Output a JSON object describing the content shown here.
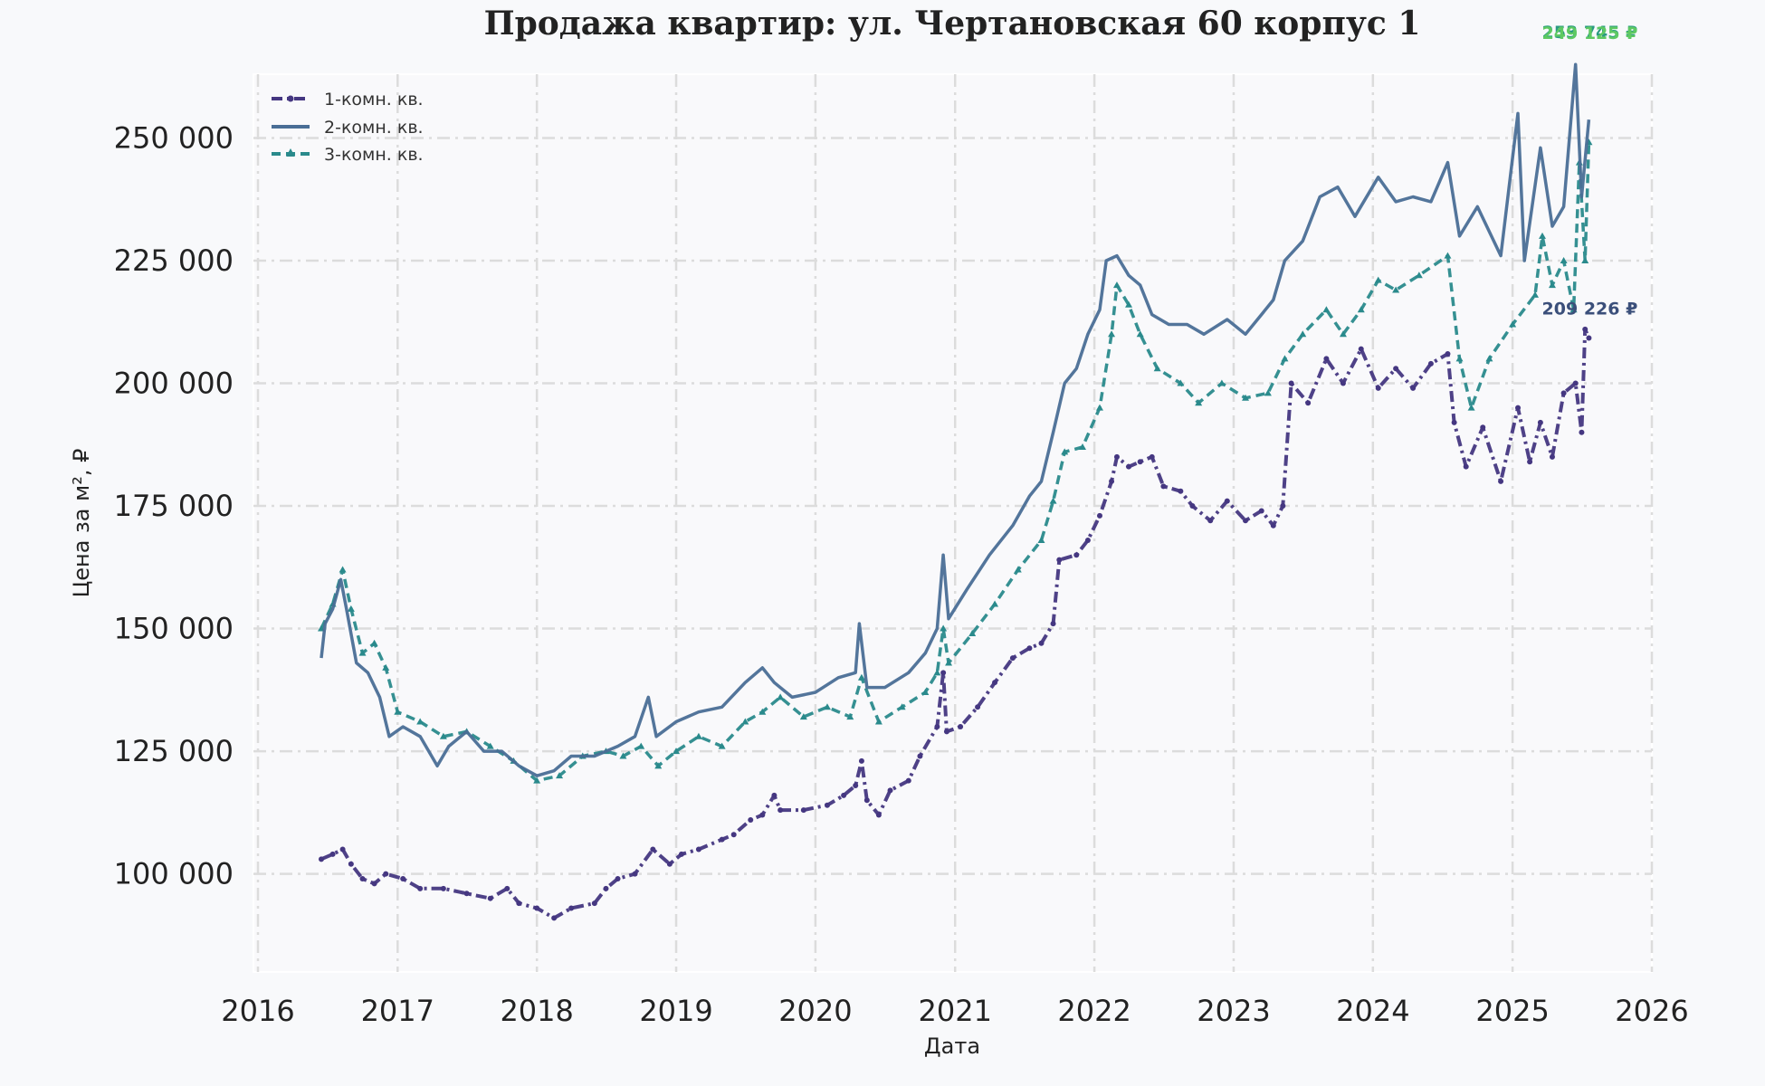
{
  "chart_data": {
    "type": "line",
    "title": "Продажа квартир: ул. Чертановская 60 корпус 1",
    "xlabel": "Дата",
    "ylabel": "Цена за м², ₽",
    "xlim": [
      "2016-01-01",
      "2026-01-01"
    ],
    "ylim": [
      80000,
      263000
    ],
    "x_ticks": [
      "2016",
      "2017",
      "2018",
      "2019",
      "2020",
      "2021",
      "2022",
      "2023",
      "2024",
      "2025",
      "2026"
    ],
    "y_ticks": [
      "100 000",
      "125 000",
      "150 000",
      "175 000",
      "200 000",
      "225 000",
      "250 000"
    ],
    "y_tick_values": [
      100000,
      125000,
      150000,
      175000,
      200000,
      225000,
      250000
    ],
    "grid": true,
    "legend_position": "top-left",
    "series": [
      {
        "name": "1-комн. кв.",
        "color": "#453781",
        "style": "dashdot-dots",
        "points": [
          [
            "2016-06-15",
            103000
          ],
          [
            "2016-07-15",
            104000
          ],
          [
            "2016-08-10",
            105000
          ],
          [
            "2016-09-01",
            102000
          ],
          [
            "2016-10-01",
            99000
          ],
          [
            "2016-11-01",
            98000
          ],
          [
            "2016-12-01",
            100000
          ],
          [
            "2017-01-15",
            99000
          ],
          [
            "2017-03-01",
            97000
          ],
          [
            "2017-05-01",
            97000
          ],
          [
            "2017-07-01",
            96000
          ],
          [
            "2017-09-01",
            95000
          ],
          [
            "2017-10-15",
            97000
          ],
          [
            "2017-11-15",
            94000
          ],
          [
            "2018-01-01",
            93000
          ],
          [
            "2018-02-15",
            91000
          ],
          [
            "2018-04-01",
            93000
          ],
          [
            "2018-06-01",
            94000
          ],
          [
            "2018-07-01",
            97000
          ],
          [
            "2018-08-01",
            99000
          ],
          [
            "2018-09-15",
            100000
          ],
          [
            "2018-11-01",
            105000
          ],
          [
            "2018-12-15",
            102000
          ],
          [
            "2019-01-15",
            104000
          ],
          [
            "2019-03-01",
            105000
          ],
          [
            "2019-05-01",
            107000
          ],
          [
            "2019-06-01",
            108000
          ],
          [
            "2019-07-15",
            111000
          ],
          [
            "2019-08-15",
            112000
          ],
          [
            "2019-09-15",
            116000
          ],
          [
            "2019-10-01",
            113000
          ],
          [
            "2019-12-01",
            113000
          ],
          [
            "2020-02-01",
            114000
          ],
          [
            "2020-03-15",
            116000
          ],
          [
            "2020-04-15",
            118000
          ],
          [
            "2020-05-01",
            123000
          ],
          [
            "2020-05-15",
            115000
          ],
          [
            "2020-06-15",
            112000
          ],
          [
            "2020-07-15",
            117000
          ],
          [
            "2020-09-01",
            119000
          ],
          [
            "2020-10-01",
            124000
          ],
          [
            "2020-11-15",
            130000
          ],
          [
            "2020-12-01",
            141000
          ],
          [
            "2020-12-10",
            129000
          ],
          [
            "2021-01-15",
            130000
          ],
          [
            "2021-03-01",
            134000
          ],
          [
            "2021-04-15",
            139000
          ],
          [
            "2021-06-01",
            144000
          ],
          [
            "2021-07-15",
            146000
          ],
          [
            "2021-08-15",
            147000
          ],
          [
            "2021-09-15",
            151000
          ],
          [
            "2021-10-01",
            164000
          ],
          [
            "2021-11-15",
            165000
          ],
          [
            "2021-12-15",
            168000
          ],
          [
            "2022-01-15",
            173000
          ],
          [
            "2022-02-15",
            180000
          ],
          [
            "2022-03-01",
            185000
          ],
          [
            "2022-04-01",
            183000
          ],
          [
            "2022-05-01",
            184000
          ],
          [
            "2022-06-01",
            185000
          ],
          [
            "2022-07-01",
            179000
          ],
          [
            "2022-08-15",
            178000
          ],
          [
            "2022-09-15",
            175000
          ],
          [
            "2022-11-01",
            172000
          ],
          [
            "2022-12-15",
            176000
          ],
          [
            "2023-02-01",
            172000
          ],
          [
            "2023-03-15",
            174000
          ],
          [
            "2023-04-15",
            171000
          ],
          [
            "2023-05-10",
            175000
          ],
          [
            "2023-06-01",
            200000
          ],
          [
            "2023-07-15",
            196000
          ],
          [
            "2023-09-01",
            205000
          ],
          [
            "2023-10-15",
            200000
          ],
          [
            "2023-12-01",
            207000
          ],
          [
            "2024-01-15",
            199000
          ],
          [
            "2024-03-01",
            203000
          ],
          [
            "2024-04-15",
            199000
          ],
          [
            "2024-06-01",
            204000
          ],
          [
            "2024-07-15",
            206000
          ],
          [
            "2024-08-01",
            192000
          ],
          [
            "2024-09-01",
            183000
          ],
          [
            "2024-10-15",
            191000
          ],
          [
            "2024-12-01",
            180000
          ],
          [
            "2025-01-15",
            195000
          ],
          [
            "2025-02-15",
            184000
          ],
          [
            "2025-03-15",
            192000
          ],
          [
            "2025-04-15",
            185000
          ],
          [
            "2025-05-15",
            198000
          ],
          [
            "2025-06-15",
            200000
          ],
          [
            "2025-07-01",
            190000
          ],
          [
            "2025-07-10",
            211000
          ],
          [
            "2025-07-20",
            209226
          ]
        ],
        "end_label": "209 226 ₽"
      },
      {
        "name": "2-комн. кв.",
        "color": "#4a6e96",
        "style": "solid",
        "points": [
          [
            "2016-06-15",
            144000
          ],
          [
            "2016-06-25",
            151000
          ],
          [
            "2016-07-15",
            154000
          ],
          [
            "2016-08-05",
            160000
          ],
          [
            "2016-08-20",
            154000
          ],
          [
            "2016-09-15",
            143000
          ],
          [
            "2016-10-15",
            141000
          ],
          [
            "2016-11-15",
            136000
          ],
          [
            "2016-12-10",
            128000
          ],
          [
            "2017-01-15",
            130000
          ],
          [
            "2017-03-01",
            128000
          ],
          [
            "2017-04-15",
            122000
          ],
          [
            "2017-05-15",
            126000
          ],
          [
            "2017-07-01",
            129000
          ],
          [
            "2017-08-15",
            125000
          ],
          [
            "2017-10-01",
            125000
          ],
          [
            "2017-11-15",
            122000
          ],
          [
            "2018-01-01",
            120000
          ],
          [
            "2018-02-15",
            121000
          ],
          [
            "2018-04-01",
            124000
          ],
          [
            "2018-06-01",
            124000
          ],
          [
            "2018-08-01",
            126000
          ],
          [
            "2018-09-15",
            128000
          ],
          [
            "2018-10-20",
            136000
          ],
          [
            "2018-11-10",
            128000
          ],
          [
            "2019-01-01",
            131000
          ],
          [
            "2019-03-01",
            133000
          ],
          [
            "2019-05-01",
            134000
          ],
          [
            "2019-07-01",
            139000
          ],
          [
            "2019-08-15",
            142000
          ],
          [
            "2019-09-15",
            139000
          ],
          [
            "2019-11-01",
            136000
          ],
          [
            "2020-01-01",
            137000
          ],
          [
            "2020-03-01",
            140000
          ],
          [
            "2020-04-15",
            141000
          ],
          [
            "2020-04-25",
            151000
          ],
          [
            "2020-05-15",
            138000
          ],
          [
            "2020-07-01",
            138000
          ],
          [
            "2020-09-01",
            141000
          ],
          [
            "2020-10-15",
            145000
          ],
          [
            "2020-11-15",
            150000
          ],
          [
            "2020-12-01",
            165000
          ],
          [
            "2020-12-15",
            152000
          ],
          [
            "2021-02-01",
            158000
          ],
          [
            "2021-04-01",
            165000
          ],
          [
            "2021-06-01",
            171000
          ],
          [
            "2021-07-15",
            177000
          ],
          [
            "2021-08-15",
            180000
          ],
          [
            "2021-09-15",
            190000
          ],
          [
            "2021-10-15",
            200000
          ],
          [
            "2021-11-15",
            203000
          ],
          [
            "2021-12-15",
            210000
          ],
          [
            "2022-01-15",
            215000
          ],
          [
            "2022-02-01",
            225000
          ],
          [
            "2022-03-01",
            226000
          ],
          [
            "2022-04-01",
            222000
          ],
          [
            "2022-05-01",
            220000
          ],
          [
            "2022-06-01",
            214000
          ],
          [
            "2022-07-15",
            212000
          ],
          [
            "2022-09-01",
            212000
          ],
          [
            "2022-10-15",
            210000
          ],
          [
            "2022-12-15",
            213000
          ],
          [
            "2023-02-01",
            210000
          ],
          [
            "2023-03-15",
            214000
          ],
          [
            "2023-04-15",
            217000
          ],
          [
            "2023-05-15",
            225000
          ],
          [
            "2023-07-01",
            229000
          ],
          [
            "2023-08-15",
            238000
          ],
          [
            "2023-10-01",
            240000
          ],
          [
            "2023-11-15",
            234000
          ],
          [
            "2024-01-15",
            242000
          ],
          [
            "2024-03-01",
            237000
          ],
          [
            "2024-04-15",
            238000
          ],
          [
            "2024-06-01",
            237000
          ],
          [
            "2024-07-15",
            245000
          ],
          [
            "2024-08-15",
            230000
          ],
          [
            "2024-10-01",
            236000
          ],
          [
            "2024-12-01",
            226000
          ],
          [
            "2025-01-15",
            255000
          ],
          [
            "2025-02-01",
            225000
          ],
          [
            "2025-03-15",
            248000
          ],
          [
            "2025-04-15",
            232000
          ],
          [
            "2025-05-15",
            236000
          ],
          [
            "2025-06-15",
            265000
          ],
          [
            "2025-07-01",
            238000
          ],
          [
            "2025-07-20",
            253745
          ]
        ],
        "end_label": "253 745 ₽"
      },
      {
        "name": "3-комн. кв.",
        "color": "#2a8a8c",
        "style": "dashed-triangles",
        "points": [
          [
            "2016-06-15",
            150000
          ],
          [
            "2016-07-15",
            155000
          ],
          [
            "2016-08-10",
            162000
          ],
          [
            "2016-09-01",
            154000
          ],
          [
            "2016-10-01",
            145000
          ],
          [
            "2016-11-01",
            147000
          ],
          [
            "2016-12-01",
            142000
          ],
          [
            "2017-01-01",
            133000
          ],
          [
            "2017-03-01",
            131000
          ],
          [
            "2017-05-01",
            128000
          ],
          [
            "2017-07-01",
            129000
          ],
          [
            "2017-09-01",
            126000
          ],
          [
            "2017-11-01",
            123000
          ],
          [
            "2018-01-01",
            119000
          ],
          [
            "2018-03-01",
            120000
          ],
          [
            "2018-05-01",
            124000
          ],
          [
            "2018-07-01",
            125000
          ],
          [
            "2018-08-15",
            124000
          ],
          [
            "2018-10-01",
            126000
          ],
          [
            "2018-11-15",
            122000
          ],
          [
            "2019-01-01",
            125000
          ],
          [
            "2019-03-01",
            128000
          ],
          [
            "2019-05-01",
            126000
          ],
          [
            "2019-07-01",
            131000
          ],
          [
            "2019-08-15",
            133000
          ],
          [
            "2019-10-01",
            136000
          ],
          [
            "2019-12-01",
            132000
          ],
          [
            "2020-02-01",
            134000
          ],
          [
            "2020-04-01",
            132000
          ],
          [
            "2020-05-01",
            140000
          ],
          [
            "2020-06-15",
            131000
          ],
          [
            "2020-08-15",
            134000
          ],
          [
            "2020-10-15",
            137000
          ],
          [
            "2020-11-15",
            141000
          ],
          [
            "2020-12-01",
            150000
          ],
          [
            "2020-12-15",
            143000
          ],
          [
            "2021-02-15",
            149000
          ],
          [
            "2021-04-15",
            155000
          ],
          [
            "2021-06-15",
            162000
          ],
          [
            "2021-08-15",
            168000
          ],
          [
            "2021-09-15",
            176000
          ],
          [
            "2021-10-15",
            186000
          ],
          [
            "2021-12-01",
            187000
          ],
          [
            "2022-01-15",
            195000
          ],
          [
            "2022-02-15",
            210000
          ],
          [
            "2022-03-01",
            220000
          ],
          [
            "2022-04-01",
            216000
          ],
          [
            "2022-05-01",
            210000
          ],
          [
            "2022-06-15",
            203000
          ],
          [
            "2022-08-15",
            200000
          ],
          [
            "2022-10-01",
            196000
          ],
          [
            "2022-12-01",
            200000
          ],
          [
            "2023-02-01",
            197000
          ],
          [
            "2023-04-01",
            198000
          ],
          [
            "2023-05-15",
            205000
          ],
          [
            "2023-07-01",
            210000
          ],
          [
            "2023-09-01",
            215000
          ],
          [
            "2023-10-15",
            210000
          ],
          [
            "2023-12-01",
            215000
          ],
          [
            "2024-01-15",
            221000
          ],
          [
            "2024-03-01",
            219000
          ],
          [
            "2024-05-01",
            222000
          ],
          [
            "2024-07-15",
            226000
          ],
          [
            "2024-08-15",
            205000
          ],
          [
            "2024-09-15",
            195000
          ],
          [
            "2024-11-01",
            205000
          ],
          [
            "2025-01-01",
            212000
          ],
          [
            "2025-03-01",
            218000
          ],
          [
            "2025-03-20",
            230000
          ],
          [
            "2025-04-15",
            220000
          ],
          [
            "2025-05-15",
            225000
          ],
          [
            "2025-06-10",
            215000
          ],
          [
            "2025-06-25",
            245000
          ],
          [
            "2025-07-10",
            225000
          ],
          [
            "2025-07-20",
            249125
          ]
        ],
        "end_label": "249 125 ₽",
        "end_label_color": "#5ec962"
      }
    ]
  }
}
